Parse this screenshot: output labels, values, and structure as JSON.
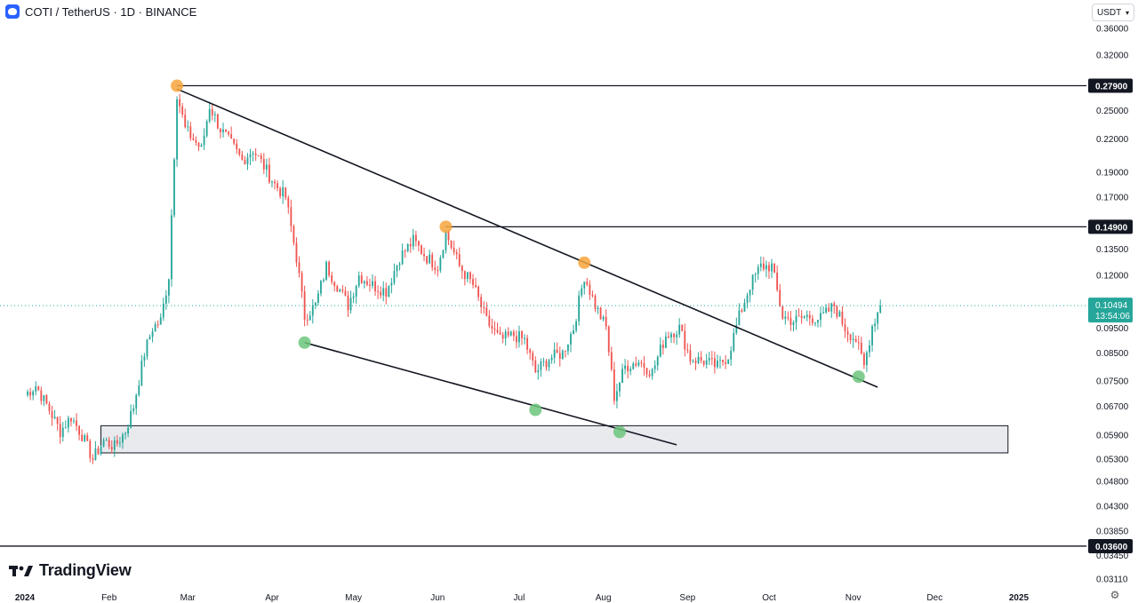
{
  "header": {
    "title": "COTI / TetherUS · 1D · BINANCE"
  },
  "currency_selector": {
    "value": "USDT"
  },
  "brand": {
    "name": "TradingView"
  },
  "settings_icon": "gear-icon",
  "chart_data": {
    "type": "candlestick",
    "symbol": "COTI / TetherUS",
    "interval": "1D",
    "exchange": "BINANCE",
    "y_scale": "log",
    "y_ticks": [
      "0.36000",
      "0.32000",
      "0.25000",
      "0.22000",
      "0.19000",
      "0.17000",
      "0.13500",
      "0.12000",
      "0.09500",
      "0.08500",
      "0.07500",
      "0.06700",
      "0.05900",
      "0.05300",
      "0.04800",
      "0.04300",
      "0.03850",
      "0.03450",
      "0.03110"
    ],
    "x_ticks": [
      "2024",
      "Feb",
      "Mar",
      "Apr",
      "May",
      "Jun",
      "Jul",
      "Aug",
      "Sep",
      "Oct",
      "Nov",
      "Dec",
      "2025"
    ],
    "current_price": {
      "value": "0.10494",
      "countdown": "13:54:06",
      "color": "#26a69a"
    },
    "horizontal_levels": [
      {
        "value": "0.27900",
        "style": "solid"
      },
      {
        "value": "0.14900",
        "style": "solid"
      },
      {
        "value": "0.03600",
        "style": "solid"
      }
    ],
    "trendlines": [
      {
        "name": "descending resistance",
        "from": {
          "date": "2024-02-26",
          "price": 0.275
        },
        "to": {
          "date": "2024-11-10",
          "price": 0.073
        }
      },
      {
        "name": "descending support",
        "from": {
          "date": "2024-04-13",
          "price": 0.089
        },
        "to": {
          "date": "2024-08-28",
          "price": 0.0565
        }
      }
    ],
    "support_zone": {
      "from_date": "2024-01-29",
      "to_date": "2024-12-28",
      "low": 0.0545,
      "high": 0.0615,
      "color": "#e9eaee"
    },
    "markers": [
      {
        "date": "2024-02-26",
        "price": 0.279,
        "color": "#f7a53c"
      },
      {
        "date": "2024-06-04",
        "price": 0.149,
        "color": "#f7a53c"
      },
      {
        "date": "2024-07-25",
        "price": 0.127,
        "color": "#f7a53c"
      },
      {
        "date": "2024-04-13",
        "price": 0.089,
        "color": "#6cc57c"
      },
      {
        "date": "2024-07-07",
        "price": 0.066,
        "color": "#6cc57c"
      },
      {
        "date": "2024-08-07",
        "price": 0.0598,
        "color": "#6cc57c"
      },
      {
        "date": "2024-11-03",
        "price": 0.0765,
        "color": "#6cc57c"
      }
    ],
    "candle_colors": {
      "up": "#26a69a",
      "down": "#ef5350"
    },
    "close_path": [
      [
        "2024-01-01",
        0.0705
      ],
      [
        "2024-01-05",
        0.0735
      ],
      [
        "2024-01-10",
        0.066
      ],
      [
        "2024-01-14",
        0.06
      ],
      [
        "2024-01-18",
        0.064
      ],
      [
        "2024-01-22",
        0.059
      ],
      [
        "2024-01-26",
        0.053
      ],
      [
        "2024-01-30",
        0.0575
      ],
      [
        "2024-02-03",
        0.056
      ],
      [
        "2024-02-07",
        0.06
      ],
      [
        "2024-02-10",
        0.067
      ],
      [
        "2024-02-14",
        0.085
      ],
      [
        "2024-02-17",
        0.095
      ],
      [
        "2024-02-20",
        0.098
      ],
      [
        "2024-02-23",
        0.12
      ],
      [
        "2024-02-26",
        0.27
      ],
      [
        "2024-02-29",
        0.23
      ],
      [
        "2024-03-03",
        0.22
      ],
      [
        "2024-03-06",
        0.21
      ],
      [
        "2024-03-09",
        0.255
      ],
      [
        "2024-03-13",
        0.23
      ],
      [
        "2024-03-17",
        0.215
      ],
      [
        "2024-03-21",
        0.2
      ],
      [
        "2024-03-25",
        0.21
      ],
      [
        "2024-03-29",
        0.195
      ],
      [
        "2024-04-02",
        0.18
      ],
      [
        "2024-04-06",
        0.17
      ],
      [
        "2024-04-10",
        0.13
      ],
      [
        "2024-04-13",
        0.1
      ],
      [
        "2024-04-17",
        0.105
      ],
      [
        "2024-04-21",
        0.125
      ],
      [
        "2024-04-25",
        0.115
      ],
      [
        "2024-04-29",
        0.105
      ],
      [
        "2024-05-03",
        0.12
      ],
      [
        "2024-05-08",
        0.115
      ],
      [
        "2024-05-13",
        0.112
      ],
      [
        "2024-05-18",
        0.13
      ],
      [
        "2024-05-23",
        0.14
      ],
      [
        "2024-05-28",
        0.13
      ],
      [
        "2024-06-01",
        0.125
      ],
      [
        "2024-06-04",
        0.145
      ],
      [
        "2024-06-09",
        0.125
      ],
      [
        "2024-06-14",
        0.115
      ],
      [
        "2024-06-19",
        0.098
      ],
      [
        "2024-06-24",
        0.09
      ],
      [
        "2024-06-29",
        0.092
      ],
      [
        "2024-07-03",
        0.09
      ],
      [
        "2024-07-07",
        0.078
      ],
      [
        "2024-07-12",
        0.083
      ],
      [
        "2024-07-17",
        0.085
      ],
      [
        "2024-07-21",
        0.095
      ],
      [
        "2024-07-25",
        0.12
      ],
      [
        "2024-07-29",
        0.105
      ],
      [
        "2024-08-02",
        0.095
      ],
      [
        "2024-08-05",
        0.07
      ],
      [
        "2024-08-09",
        0.08
      ],
      [
        "2024-08-14",
        0.082
      ],
      [
        "2024-08-19",
        0.078
      ],
      [
        "2024-08-24",
        0.092
      ],
      [
        "2024-08-29",
        0.095
      ],
      [
        "2024-09-02",
        0.083
      ],
      [
        "2024-09-07",
        0.082
      ],
      [
        "2024-09-12",
        0.08
      ],
      [
        "2024-09-16",
        0.084
      ],
      [
        "2024-09-20",
        0.1
      ],
      [
        "2024-09-24",
        0.115
      ],
      [
        "2024-09-28",
        0.125
      ],
      [
        "2024-10-02",
        0.125
      ],
      [
        "2024-10-06",
        0.1
      ],
      [
        "2024-10-10",
        0.098
      ],
      [
        "2024-10-15",
        0.1
      ],
      [
        "2024-10-20",
        0.099
      ],
      [
        "2024-10-25",
        0.105
      ],
      [
        "2024-10-29",
        0.095
      ],
      [
        "2024-11-02",
        0.09
      ],
      [
        "2024-11-05",
        0.08
      ],
      [
        "2024-11-08",
        0.096
      ],
      [
        "2024-11-11",
        0.1049
      ]
    ]
  }
}
